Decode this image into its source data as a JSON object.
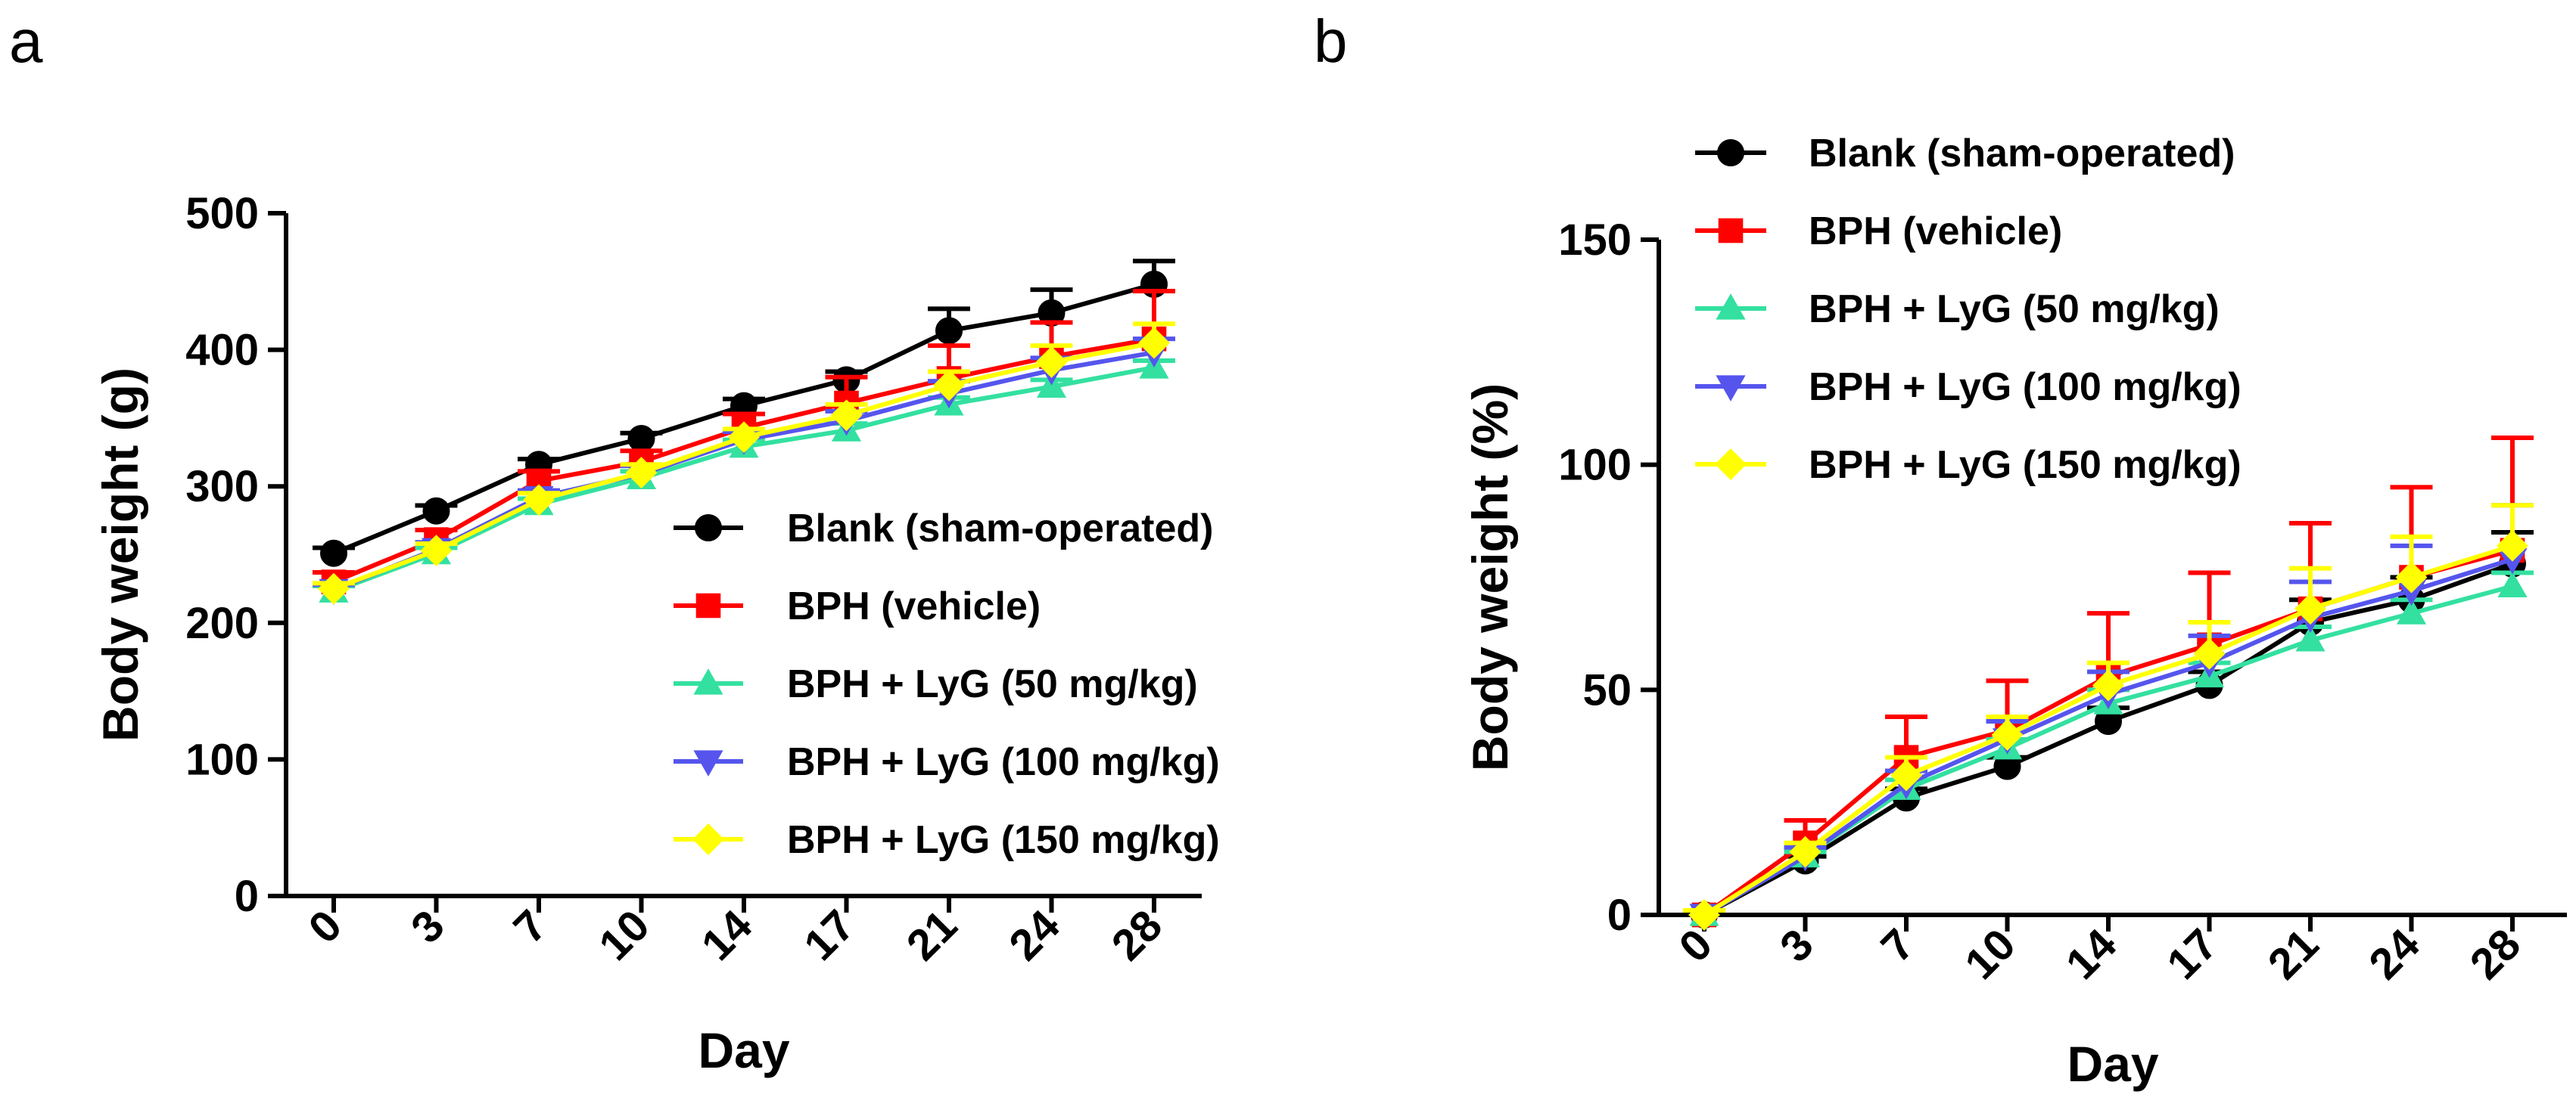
{
  "panels": [
    {
      "letter": "a"
    },
    {
      "letter": "b"
    }
  ],
  "series_styles": [
    {
      "name": "Blank (sham-operated)",
      "color": "#000000",
      "marker": "circle"
    },
    {
      "name": "BPH (vehicle)",
      "color": "#ff0000",
      "marker": "square"
    },
    {
      "name": "BPH + LyG (50 mg/kg)",
      "color": "#33e0a0",
      "marker": "triangle-up"
    },
    {
      "name": "BPH + LyG (100 mg/kg)",
      "color": "#5555ee",
      "marker": "triangle-down"
    },
    {
      "name": "BPH + LyG (150 mg/kg)",
      "color": "#ffff00",
      "marker": "diamond"
    }
  ],
  "chart_data": [
    {
      "type": "line",
      "panel": "a",
      "title": "",
      "xlabel": "Day",
      "ylabel": "Body weight (g)",
      "categories": [
        "0",
        "3",
        "7",
        "10",
        "14",
        "17",
        "21",
        "24",
        "28"
      ],
      "ylim": [
        0,
        500
      ],
      "yticks": [
        0,
        100,
        200,
        300,
        400,
        500
      ],
      "legend_position": "center-right",
      "series": [
        {
          "name": "Blank (sham-operated)",
          "values": [
            251,
            282,
            316,
            335,
            359,
            378,
            414,
            427,
            448
          ],
          "errors": [
            4,
            4,
            4,
            4,
            5,
            6,
            16,
            17,
            17
          ]
        },
        {
          "name": "BPH (vehicle)",
          "values": [
            230,
            261,
            304,
            318,
            343,
            361,
            379,
            395,
            408
          ],
          "errors": [
            7,
            7,
            7,
            8,
            10,
            19,
            24,
            25,
            35
          ]
        },
        {
          "name": "BPH + LyG (50 mg/kg)",
          "values": [
            223,
            251,
            287,
            306,
            329,
            341,
            360,
            373,
            387
          ],
          "errors": [
            4,
            4,
            4,
            5,
            5,
            5,
            5,
            5,
            5
          ]
        },
        {
          "name": "BPH + LyG (100 mg/kg)",
          "values": [
            224,
            254,
            292,
            309,
            334,
            348,
            368,
            385,
            398
          ],
          "errors": [
            4,
            5,
            5,
            6,
            6,
            7,
            9,
            9,
            10
          ]
        },
        {
          "name": "BPH + LyG (150 mg/kg)",
          "values": [
            225,
            253,
            290,
            310,
            336,
            352,
            374,
            391,
            405
          ],
          "errors": [
            4,
            5,
            5,
            6,
            6,
            8,
            10,
            12,
            14
          ]
        }
      ]
    },
    {
      "type": "line",
      "panel": "b",
      "title": "",
      "xlabel": "Day",
      "ylabel": "Body weight (%)",
      "categories": [
        "0",
        "3",
        "7",
        "10",
        "14",
        "17",
        "21",
        "24",
        "28"
      ],
      "ylim": [
        0,
        150
      ],
      "yticks": [
        0,
        50,
        100,
        150
      ],
      "legend_position": "top-left",
      "series": [
        {
          "name": "Blank (sham-operated)",
          "values": [
            0,
            12,
            26,
            33,
            43,
            51,
            65,
            70,
            78
          ],
          "errors": [
            1,
            1,
            2,
            2,
            3,
            3,
            5,
            5,
            7
          ]
        },
        {
          "name": "BPH (vehicle)",
          "values": [
            0,
            16,
            35,
            41,
            53,
            60,
            68,
            75,
            81
          ],
          "errors": [
            1,
            5,
            9,
            11,
            14,
            16,
            19,
            20,
            25
          ]
        },
        {
          "name": "BPH + LyG (50 mg/kg)",
          "values": [
            0,
            13,
            28,
            37,
            47,
            53,
            61,
            67,
            73
          ],
          "errors": [
            1,
            1,
            2,
            2,
            3,
            3,
            3,
            3,
            3
          ]
        },
        {
          "name": "BPH + LyG (100 mg/kg)",
          "values": [
            0,
            13,
            29,
            39,
            49,
            56,
            66,
            72,
            79
          ],
          "errors": [
            1,
            2,
            3,
            4,
            5,
            6,
            8,
            10,
            12
          ]
        },
        {
          "name": "BPH + LyG (150 mg/kg)",
          "values": [
            0,
            14,
            31,
            40,
            51,
            58,
            68,
            75,
            82
          ],
          "errors": [
            1,
            2,
            4,
            4,
            5,
            7,
            9,
            9,
            9
          ]
        }
      ]
    }
  ]
}
